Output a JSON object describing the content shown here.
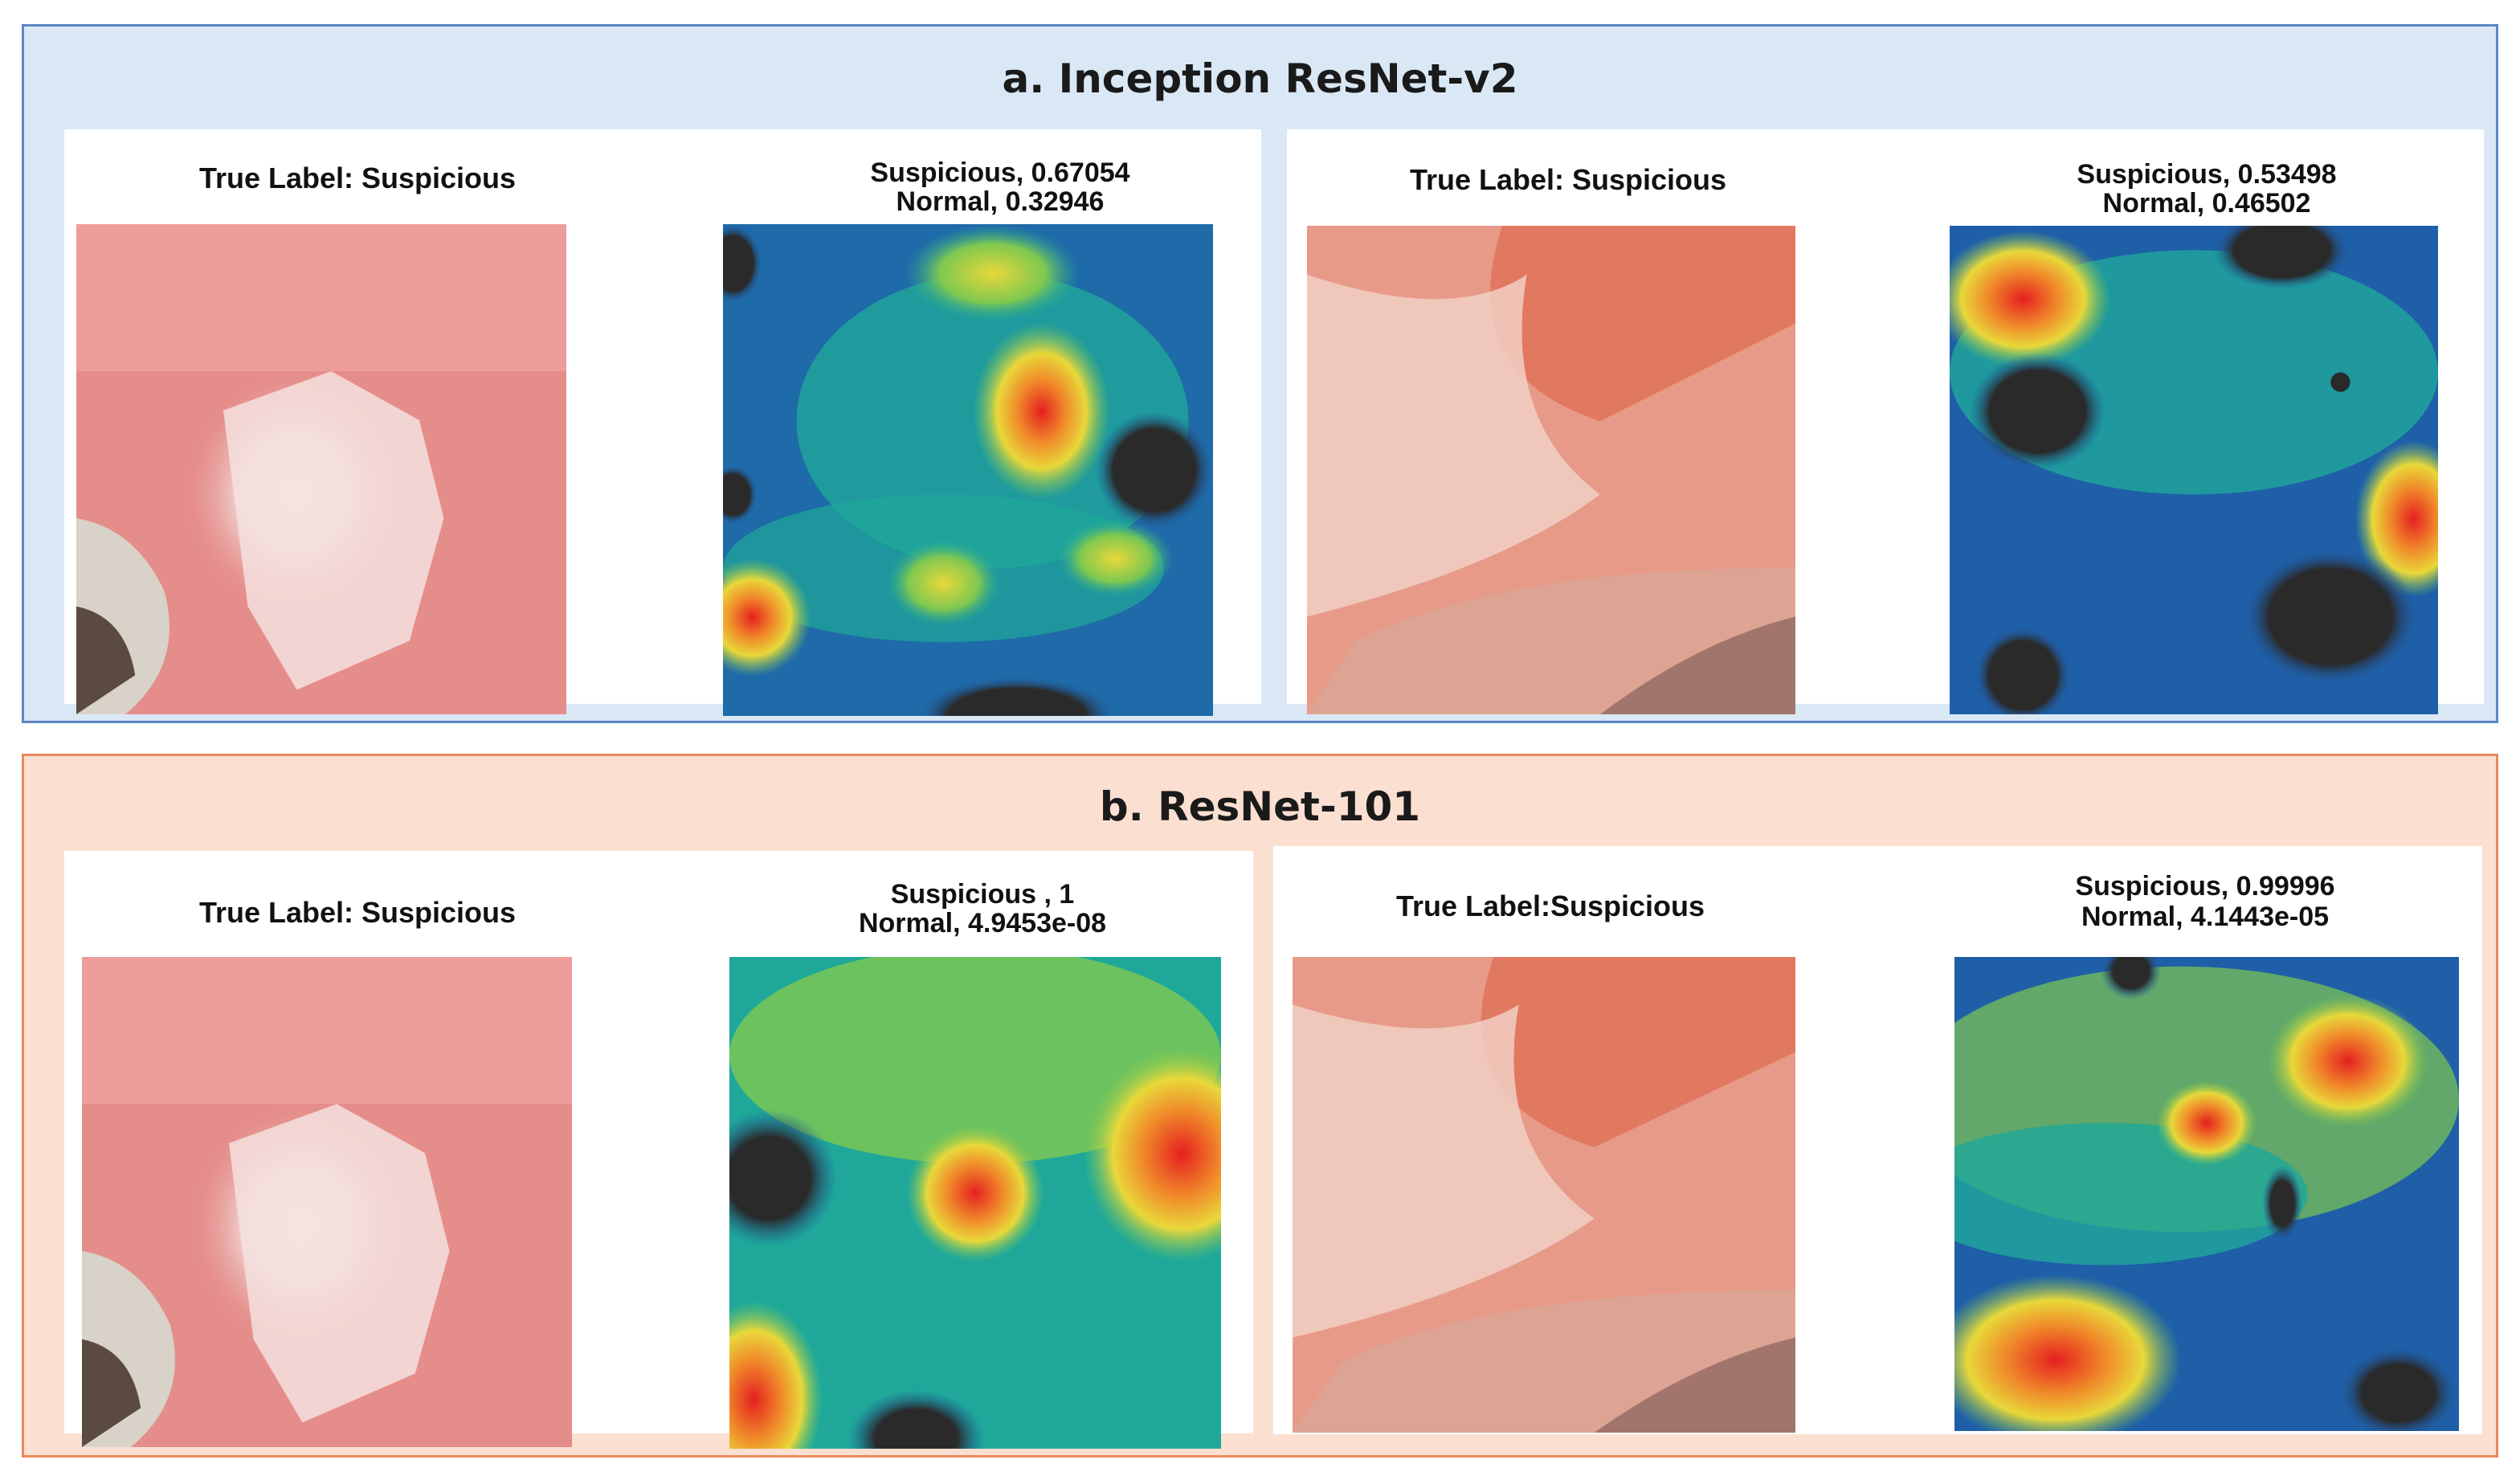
{
  "sections": [
    {
      "title": "a. Inception ResNet-v2",
      "colors": {
        "background": "#dae8f5",
        "border": "#5b87c2"
      },
      "panels": [
        {
          "true_label": "True Label: Suspicious",
          "prediction": [
            "Suspicious, 0.67054",
            "Normal, 0.32946"
          ],
          "images": {
            "photo": "lesion-photo-1",
            "heatmap": "gradcam-heatmap"
          }
        },
        {
          "true_label": "True Label: Suspicious",
          "prediction": [
            "Suspicious, 0.53498",
            "Normal, 0.46502"
          ],
          "images": {
            "photo": "lesion-photo-2",
            "heatmap": "gradcam-heatmap"
          }
        }
      ]
    },
    {
      "title": "b. ResNet-101",
      "colors": {
        "background": "#fbe0d2",
        "border": "#e98a5a"
      },
      "panels": [
        {
          "true_label": "True Label: Suspicious",
          "prediction": [
            "Suspicious , 1",
            "Normal, 4.9453e-08"
          ],
          "images": {
            "photo": "lesion-photo-1",
            "heatmap": "gradcam-heatmap"
          }
        },
        {
          "true_label": "True Label:Suspicious",
          "prediction": [
            "Suspicious, 0.99996",
            "Normal, 4.1443e-05"
          ],
          "images": {
            "photo": "lesion-photo-2",
            "heatmap": "gradcam-heatmap"
          }
        }
      ]
    }
  ],
  "heatmap_colors": [
    "#0a2a6a",
    "#1f5fa8",
    "#1fa89a",
    "#7ec850",
    "#e8d83a",
    "#f08a2a",
    "#e52020",
    "#2a2a2a"
  ]
}
